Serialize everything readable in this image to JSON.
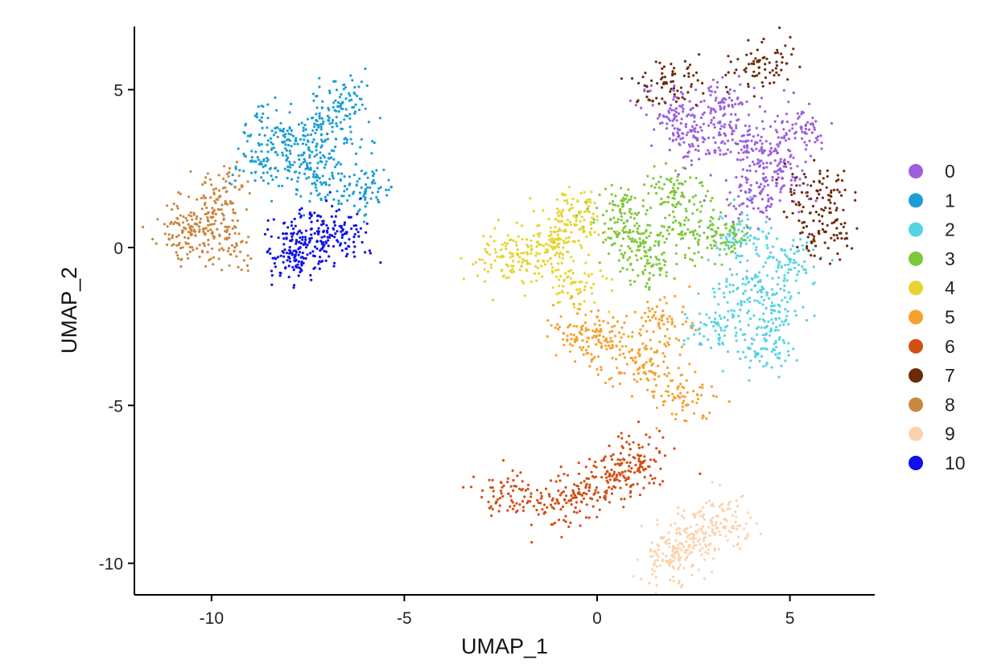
{
  "chart_data": {
    "type": "scatter",
    "xlabel": "UMAP_1",
    "ylabel": "UMAP_2",
    "xlim": [
      -12,
      7.2
    ],
    "ylim": [
      -11,
      7
    ],
    "x_ticks": [
      -10,
      -5,
      0,
      5
    ],
    "x_tick_labels": [
      "-10",
      "-5",
      "0",
      "5"
    ],
    "y_ticks": [
      5,
      0,
      -5,
      -10
    ],
    "y_tick_labels": [
      "5",
      "0",
      "-5",
      "-10"
    ],
    "grid": false,
    "legend_position": "right",
    "series": [
      {
        "name": "0",
        "color": "#9b5fe0",
        "values": [
          [
            3.5,
            3.6
          ],
          [
            4.3,
            3.0
          ],
          [
            2.6,
            3.4
          ],
          [
            4.8,
            2.2
          ],
          [
            3.2,
            4.6
          ],
          [
            5.3,
            3.8
          ],
          [
            2.0,
            4.2
          ],
          [
            4.0,
            1.5
          ]
        ]
      },
      {
        "name": "1",
        "color": "#1b9ed6",
        "values": [
          [
            -7.6,
            3.0
          ],
          [
            -6.6,
            4.6
          ],
          [
            -8.3,
            3.8
          ],
          [
            -7.2,
            2.2
          ],
          [
            -6.0,
            1.8
          ],
          [
            -8.6,
            2.6
          ],
          [
            -7.0,
            3.6
          ]
        ]
      },
      {
        "name": "2",
        "color": "#55d3e4",
        "values": [
          [
            4.1,
            -1.2
          ],
          [
            4.3,
            -3.2
          ],
          [
            3.1,
            -2.4
          ],
          [
            5.0,
            -0.4
          ],
          [
            3.7,
            0.2
          ],
          [
            4.6,
            -2.0
          ]
        ]
      },
      {
        "name": "3",
        "color": "#7ec83b",
        "values": [
          [
            2.2,
            0.5
          ],
          [
            0.6,
            1.2
          ],
          [
            1.3,
            -0.5
          ],
          [
            3.2,
            0.4
          ],
          [
            2.0,
            1.8
          ],
          [
            0.9,
            0.2
          ]
        ]
      },
      {
        "name": "4",
        "color": "#e6d42f",
        "values": [
          [
            -1.5,
            -0.2
          ],
          [
            -0.6,
            1.0
          ],
          [
            -2.5,
            -0.3
          ],
          [
            -0.6,
            -1.1
          ],
          [
            -1.0,
            0.3
          ]
        ]
      },
      {
        "name": "5",
        "color": "#f6a12e",
        "values": [
          [
            0.4,
            -3.1
          ],
          [
            1.6,
            -2.4
          ],
          [
            2.1,
            -4.7
          ],
          [
            -0.4,
            -2.6
          ],
          [
            1.2,
            -3.8
          ]
        ]
      },
      {
        "name": "6",
        "color": "#d34e14",
        "values": [
          [
            -0.2,
            -7.6
          ],
          [
            0.6,
            -7.2
          ],
          [
            -1.0,
            -8.1
          ],
          [
            1.1,
            -6.6
          ],
          [
            -2.3,
            -7.8
          ]
        ]
      },
      {
        "name": "7",
        "color": "#6b2c0a",
        "values": [
          [
            4.2,
            5.7
          ],
          [
            1.8,
            5.2
          ],
          [
            5.9,
            0.5
          ],
          [
            5.7,
            1.8
          ]
        ]
      },
      {
        "name": "8",
        "color": "#c98840",
        "values": [
          [
            -10.3,
            0.8
          ],
          [
            -9.8,
            1.6
          ],
          [
            -10.6,
            0.3
          ],
          [
            -9.6,
            0.3
          ]
        ]
      },
      {
        "name": "9",
        "color": "#fcd2ae",
        "values": [
          [
            2.2,
            -9.4
          ],
          [
            3.3,
            -8.6
          ],
          [
            1.9,
            -9.9
          ],
          [
            2.7,
            -8.9
          ]
        ]
      },
      {
        "name": "10",
        "color": "#1010e8",
        "values": [
          [
            -7.7,
            0.0
          ],
          [
            -7.1,
            0.5
          ],
          [
            -8.0,
            -0.3
          ],
          [
            -6.6,
            0.4
          ]
        ]
      }
    ]
  }
}
